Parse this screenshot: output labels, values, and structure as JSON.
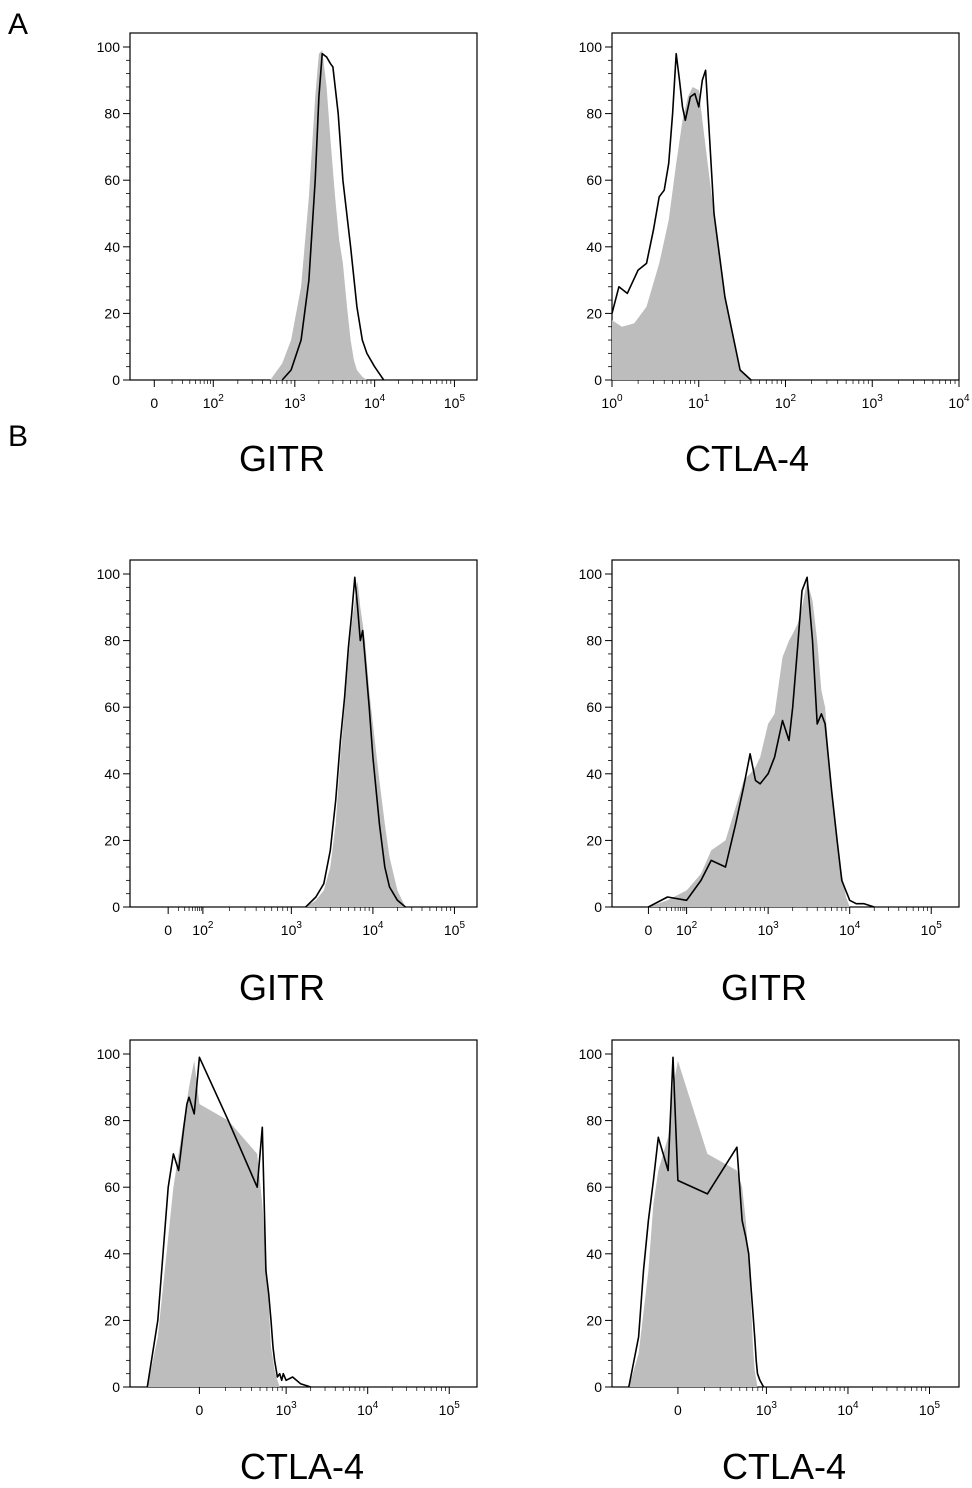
{
  "panels": {
    "a": "A",
    "b": "B"
  },
  "colors": {
    "control_fill": "#bdbdbd",
    "sample_line": "#000000",
    "axis": "#000000"
  },
  "chart_data": [
    {
      "type": "area",
      "panel": "A",
      "xlabel": "GITR",
      "ylabel": "",
      "ylim": [
        0,
        100
      ],
      "yticks": [
        "0",
        "20",
        "40",
        "60",
        "80",
        "100"
      ],
      "xscale": "biexponential",
      "xticks": [
        "0",
        "10^2",
        "10^3",
        "10^4",
        "10^5"
      ],
      "series": [
        {
          "role": "filled",
          "x": [
            500,
            700,
            900,
            1200,
            1500,
            1800,
            2000,
            2200,
            2500,
            2800,
            3200,
            3600,
            4000,
            4500,
            5000,
            5500,
            6000,
            7000,
            8000
          ],
          "y": [
            0,
            5,
            12,
            28,
            55,
            85,
            98,
            99,
            88,
            72,
            55,
            42,
            35,
            22,
            12,
            6,
            3,
            1,
            0
          ]
        },
        {
          "role": "line",
          "x": [
            700,
            900,
            1200,
            1500,
            1800,
            2000,
            2200,
            2500,
            2800,
            3000,
            3500,
            4000,
            5000,
            6000,
            7000,
            8000,
            10000,
            13000
          ],
          "y": [
            0,
            3,
            12,
            30,
            60,
            85,
            98,
            97,
            95,
            94,
            80,
            60,
            40,
            22,
            12,
            8,
            4,
            0
          ]
        }
      ]
    },
    {
      "type": "area",
      "panel": "A",
      "xlabel": "CTLA-4",
      "ylabel": "",
      "ylim": [
        0,
        100
      ],
      "yticks": [
        "0",
        "20",
        "40",
        "60",
        "80",
        "100"
      ],
      "xscale": "log",
      "xticks": [
        "10^0",
        "10^1",
        "10^2",
        "10^3",
        "10^4"
      ],
      "series": [
        {
          "role": "filled",
          "x": [
            1,
            1.3,
            1.8,
            2.5,
            3.5,
            4.5,
            5.5,
            6.5,
            7.5,
            8.5,
            10,
            12,
            15,
            20,
            30,
            40
          ],
          "y": [
            18,
            16,
            17,
            22,
            35,
            48,
            65,
            78,
            85,
            88,
            87,
            70,
            50,
            25,
            3,
            0
          ]
        },
        {
          "role": "line",
          "x": [
            1,
            1.2,
            1.5,
            2,
            2.5,
            3,
            3.5,
            4,
            4.5,
            5,
            5.5,
            6,
            6.5,
            7,
            8,
            9,
            10,
            11,
            12,
            15,
            20,
            30,
            40
          ],
          "y": [
            20,
            28,
            26,
            33,
            35,
            45,
            55,
            57,
            65,
            80,
            98,
            90,
            82,
            78,
            85,
            86,
            82,
            90,
            93,
            50,
            25,
            3,
            0
          ]
        }
      ]
    },
    {
      "type": "area",
      "panel": "B",
      "xlabel": "GITR",
      "ylabel": "",
      "ylim": [
        0,
        100
      ],
      "yticks": [
        "0",
        "20",
        "40",
        "60",
        "80",
        "100"
      ],
      "xscale": "biexponential",
      "xticks": [
        "0",
        "10^2",
        "10^3",
        "10^4",
        "10^5"
      ],
      "series": [
        {
          "role": "filled",
          "x": [
            1500,
            2000,
            2500,
            3000,
            3500,
            4000,
            4500,
            5000,
            5500,
            6000,
            6500,
            7000,
            7500,
            8000,
            9000,
            10000,
            12000,
            14000,
            16000,
            20000,
            25000
          ],
          "y": [
            0,
            2,
            5,
            12,
            25,
            45,
            60,
            75,
            85,
            92,
            98,
            90,
            85,
            80,
            65,
            55,
            38,
            25,
            15,
            5,
            0
          ]
        },
        {
          "role": "line",
          "x": [
            1500,
            2000,
            2500,
            3000,
            3500,
            4000,
            4500,
            5000,
            5500,
            6000,
            6500,
            7000,
            7500,
            8000,
            9000,
            10000,
            12000,
            14000,
            16000,
            20000,
            25000
          ],
          "y": [
            0,
            3,
            7,
            17,
            32,
            50,
            63,
            78,
            88,
            99,
            90,
            80,
            83,
            75,
            60,
            45,
            25,
            12,
            6,
            2,
            0
          ]
        }
      ]
    },
    {
      "type": "area",
      "panel": "B",
      "xlabel": "GITR",
      "ylabel": "",
      "ylim": [
        0,
        100
      ],
      "yticks": [
        "0",
        "20",
        "40",
        "60",
        "80",
        "100"
      ],
      "xscale": "biexponential",
      "xticks": [
        "0",
        "10^2",
        "10^3",
        "10^4",
        "10^5"
      ],
      "series": [
        {
          "role": "filled",
          "x": [
            0,
            50,
            100,
            150,
            200,
            300,
            400,
            500,
            600,
            700,
            800,
            1000,
            1200,
            1500,
            1800,
            2000,
            2300,
            2600,
            3000,
            3500,
            4000,
            4500,
            5000,
            6000,
            7000,
            8000,
            9000,
            10000
          ],
          "y": [
            0,
            2,
            5,
            10,
            17,
            20,
            30,
            38,
            40,
            42,
            45,
            55,
            58,
            75,
            80,
            82,
            85,
            90,
            98,
            92,
            80,
            65,
            60,
            35,
            20,
            10,
            3,
            0
          ]
        },
        {
          "role": "line",
          "x": [
            0,
            50,
            100,
            150,
            200,
            300,
            400,
            500,
            600,
            700,
            800,
            1000,
            1200,
            1500,
            1800,
            2000,
            2300,
            2600,
            3000,
            3500,
            4000,
            4500,
            5000,
            6000,
            7000,
            8000,
            10000,
            12000,
            15000,
            20000
          ],
          "y": [
            0,
            3,
            2,
            8,
            14,
            12,
            25,
            36,
            46,
            38,
            37,
            40,
            45,
            56,
            50,
            60,
            78,
            95,
            99,
            80,
            55,
            58,
            55,
            35,
            20,
            8,
            2,
            1,
            1,
            0
          ]
        }
      ]
    },
    {
      "type": "area",
      "panel": "B",
      "xlabel": "CTLA-4",
      "ylabel": "",
      "ylim": [
        0,
        100
      ],
      "yticks": [
        "0",
        "20",
        "40",
        "60",
        "80",
        "100"
      ],
      "xscale": "biexponential",
      "xticks": [
        "0",
        "10^3",
        "10^4",
        "10^5"
      ],
      "series": [
        {
          "role": "filled",
          "x": [
            -500,
            -400,
            -300,
            -250,
            -200,
            -150,
            -100,
            -50,
            0,
            50,
            100,
            150,
            200,
            250,
            300,
            400,
            500,
            600,
            700
          ],
          "y": [
            0,
            15,
            45,
            60,
            70,
            80,
            90,
            98,
            85,
            80,
            70,
            55,
            40,
            25,
            12,
            5,
            2,
            0,
            0
          ]
        },
        {
          "role": "line",
          "x": [
            -500,
            -400,
            -350,
            -300,
            -250,
            -200,
            -150,
            -120,
            -100,
            -50,
            0,
            50,
            100,
            150,
            200,
            250,
            300,
            350,
            400,
            500,
            600,
            700,
            800,
            1000,
            1200,
            1500,
            2000
          ],
          "y": [
            0,
            20,
            40,
            60,
            70,
            65,
            78,
            85,
            87,
            82,
            99,
            80,
            60,
            78,
            35,
            28,
            20,
            12,
            8,
            3,
            4,
            2,
            4,
            2,
            3,
            1,
            0
          ]
        }
      ]
    },
    {
      "type": "area",
      "panel": "B",
      "xlabel": "CTLA-4",
      "ylabel": "",
      "ylim": [
        0,
        100
      ],
      "yticks": [
        "0",
        "20",
        "40",
        "60",
        "80",
        "100"
      ],
      "xscale": "biexponential",
      "xticks": [
        "0",
        "10^3",
        "10^4",
        "10^5"
      ],
      "series": [
        {
          "role": "filled",
          "x": [
            -500,
            -400,
            -300,
            -250,
            -200,
            -150,
            -100,
            -50,
            0,
            50,
            100,
            150,
            200,
            250,
            300,
            350,
            400,
            500
          ],
          "y": [
            0,
            10,
            35,
            55,
            65,
            70,
            75,
            90,
            98,
            70,
            65,
            60,
            50,
            38,
            25,
            12,
            5,
            0
          ]
        },
        {
          "role": "line",
          "x": [
            -500,
            -400,
            -350,
            -300,
            -250,
            -200,
            -150,
            -100,
            -50,
            0,
            50,
            100,
            150,
            200,
            250,
            300,
            350,
            400,
            450,
            500,
            600,
            800
          ],
          "y": [
            0,
            15,
            35,
            50,
            62,
            75,
            70,
            65,
            99,
            62,
            58,
            72,
            50,
            45,
            40,
            30,
            22,
            15,
            8,
            4,
            2,
            0
          ]
        }
      ]
    }
  ]
}
